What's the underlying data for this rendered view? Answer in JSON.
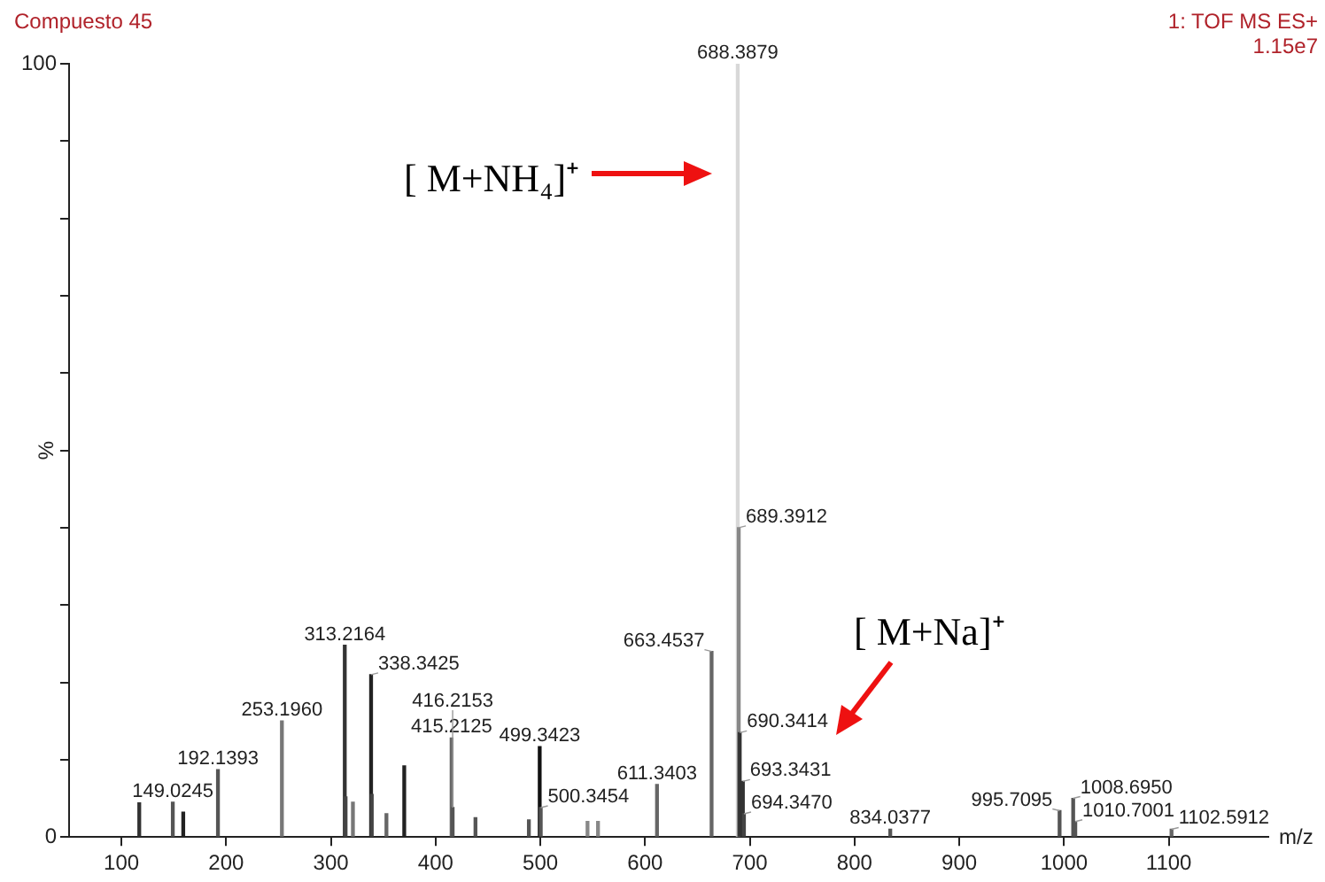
{
  "chart_data": {
    "type": "bar",
    "title": "Compuesto 45",
    "xlabel": "m/z",
    "ylabel": "%",
    "annotations": [
      "1: TOF MS ES+",
      "1.15e7",
      "[ M+NH₄]⁺",
      "[ M+Na]⁺",
      {
        "text": "149.0245",
        "x": 149.0245,
        "y": 4.5
      },
      {
        "text": "192.1393",
        "x": 192.1393,
        "y": 8.7
      },
      {
        "text": "253.1960",
        "x": 253.196,
        "y": 15
      },
      {
        "text": "313.2164",
        "x": 313.2164,
        "y": 24.8
      },
      {
        "text": "338.3425",
        "x": 338.3425,
        "y": 21
      },
      {
        "text": "415.2125",
        "x": 415.2125,
        "y": 12.8
      },
      {
        "text": "416.2153",
        "x": 416.2153,
        "y": 3.8
      },
      {
        "text": "499.3423",
        "x": 499.3423,
        "y": 11.7
      },
      {
        "text": "500.3454",
        "x": 500.3454,
        "y": 3.8
      },
      {
        "text": "611.3403",
        "x": 611.3403,
        "y": 6.8
      },
      {
        "text": "663.4537",
        "x": 663.4537,
        "y": 24
      },
      {
        "text": "688.3879",
        "x": 688.3879,
        "y": 100
      },
      {
        "text": "689.3912",
        "x": 689.3912,
        "y": 40
      },
      {
        "text": "690.3414",
        "x": 690.3414,
        "y": 13.5
      },
      {
        "text": "693.3431",
        "x": 693.3431,
        "y": 7.2
      },
      {
        "text": "694.3470",
        "x": 694.347,
        "y": 3
      },
      {
        "text": "834.0377",
        "x": 834.0377,
        "y": 1
      },
      {
        "text": "995.7095",
        "x": 995.7095,
        "y": 3.4
      },
      {
        "text": "1008.6950",
        "x": 1008.695,
        "y": 5
      },
      {
        "text": "1010.7001",
        "x": 1010.7001,
        "y": 2
      },
      {
        "text": "1102.5912",
        "x": 1102.5912,
        "y": 1
      }
    ],
    "x": [
      117,
      149.0245,
      159,
      192.1393,
      253.196,
      313.2164,
      314,
      321,
      338.3425,
      339,
      353,
      370,
      415.2125,
      416.2153,
      438,
      489,
      499.3423,
      500.3454,
      545,
      555,
      611.3403,
      663.4537,
      688.3879,
      689.3912,
      690.3414,
      693.3431,
      694.347,
      834.0377,
      995.7095,
      1008.695,
      1010.7001,
      1102.5912
    ],
    "values": [
      4.4,
      4.5,
      3.2,
      8.7,
      15,
      24.8,
      5.2,
      4.5,
      21,
      5.5,
      3,
      9.2,
      12.8,
      3.8,
      2.5,
      2.2,
      11.7,
      3.8,
      2,
      2,
      6.8,
      24,
      100,
      40,
      13.5,
      7.2,
      3,
      1,
      3.4,
      5,
      2,
      1
    ],
    "colors": [
      "#333333",
      "#555555",
      "#222222",
      "#555555",
      "#777777",
      "#333333",
      "#444444",
      "#777777",
      "#222222",
      "#444444",
      "#666666",
      "#222222",
      "#666666",
      "#555555",
      "#555555",
      "#555555",
      "#111111",
      "#555555",
      "#888888",
      "#888888",
      "#666666",
      "#666666",
      "#d8d8d8",
      "#888888",
      "#333333",
      "#333333",
      "#444444",
      "#555555",
      "#555555",
      "#555555",
      "#555555",
      "#666666"
    ],
    "xlim": [
      50,
      1195
    ],
    "xticks": [
      100,
      200,
      300,
      400,
      500,
      600,
      700,
      800,
      900,
      1000,
      1100
    ],
    "ylim": [
      0,
      100
    ],
    "yticks": [
      0,
      {
        "value": 10,
        "label": null
      },
      {
        "value": 20,
        "label": null
      },
      {
        "value": 30,
        "label": null
      },
      {
        "value": 40,
        "label": null
      },
      {
        "value": 50,
        "label": null
      },
      {
        "value": 60,
        "label": null
      },
      {
        "value": 70,
        "label": null
      },
      {
        "value": 80,
        "label": null
      },
      {
        "value": 90,
        "label": null
      },
      100
    ],
    "grid": false,
    "legend": false
  }
}
